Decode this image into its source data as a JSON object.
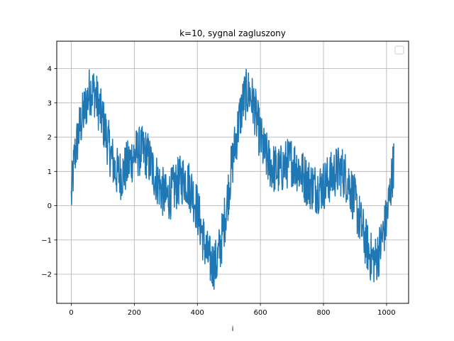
{
  "chart_data": {
    "type": "line",
    "title": "k=10, sygnal zagluszony",
    "xlabel": "i",
    "ylabel": "",
    "xlim": [
      -46,
      1070
    ],
    "ylim": [
      -2.85,
      4.8
    ],
    "xticks": [
      0,
      200,
      400,
      600,
      800,
      1000
    ],
    "xtick_labels": [
      "0",
      "200",
      "400",
      "600",
      "800",
      "1000"
    ],
    "yticks": [
      -2,
      -1,
      0,
      1,
      2,
      3,
      4
    ],
    "ytick_labels": [
      "−2",
      "−1",
      "0",
      "1",
      "2",
      "3",
      "4"
    ],
    "grid": true,
    "legend": "top-right (empty)",
    "series_color": "#1f77b4",
    "series": [
      {
        "x_start": 0,
        "x_step": 1,
        "n_points": 1024,
        "underlying_shape_x": [
          0,
          10,
          25,
          45,
          60,
          75,
          90,
          105,
          120,
          140,
          160,
          180,
          200,
          220,
          240,
          260,
          280,
          300,
          320,
          340,
          360,
          380,
          400,
          415,
          430,
          445,
          460,
          475,
          490,
          505,
          520,
          535,
          550,
          565,
          580,
          595,
          610,
          625,
          640,
          660,
          680,
          700,
          720,
          740,
          760,
          780,
          800,
          820,
          840,
          860,
          880,
          900,
          920,
          935,
          950,
          965,
          980,
          1000,
          1010,
          1023
        ],
        "underlying_shape_y": [
          0.2,
          1.4,
          2.2,
          2.9,
          3.4,
          3.3,
          2.8,
          2.3,
          1.7,
          1.0,
          0.9,
          1.2,
          1.5,
          1.6,
          1.5,
          1.0,
          0.6,
          0.2,
          0.4,
          0.7,
          0.8,
          0.5,
          -0.1,
          -0.8,
          -1.4,
          -1.7,
          -1.7,
          -1.1,
          -0.2,
          0.9,
          1.8,
          2.6,
          3.2,
          3.3,
          2.9,
          2.2,
          1.6,
          1.3,
          1.1,
          1.0,
          1.2,
          1.3,
          1.1,
          0.8,
          0.6,
          0.5,
          0.6,
          0.8,
          1.0,
          1.0,
          0.7,
          0.1,
          -0.6,
          -1.1,
          -1.5,
          -1.6,
          -1.2,
          -0.4,
          0.3,
          1.3
        ],
        "noise_amplitude": 0.75
      }
    ]
  }
}
